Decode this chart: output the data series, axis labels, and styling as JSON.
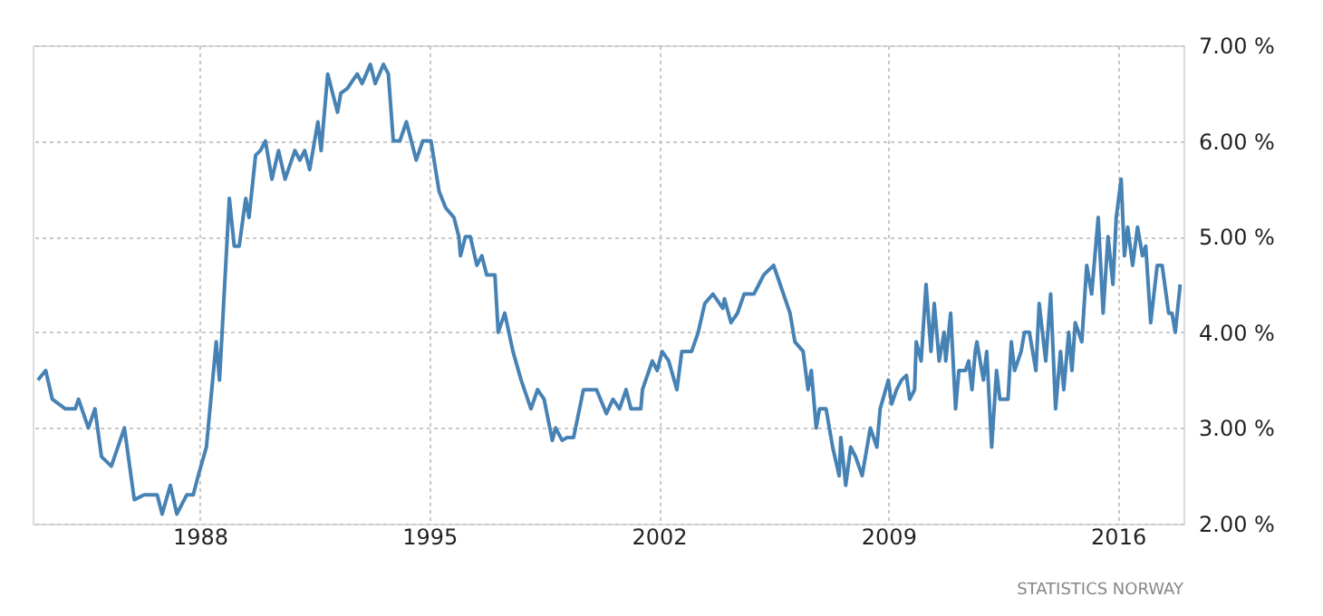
{
  "chart_data": {
    "type": "line",
    "x": [
      1983.06,
      1983.3,
      1983.5,
      1983.9,
      1984.2,
      1984.3,
      1984.6,
      1984.8,
      1985.0,
      1985.3,
      1985.7,
      1986.0,
      1986.3,
      1986.7,
      1986.85,
      1987.1,
      1987.3,
      1987.6,
      1987.8,
      1987.95,
      1988.2,
      1988.5,
      1988.6,
      1988.9,
      1989.05,
      1989.2,
      1989.4,
      1989.5,
      1989.7,
      1989.85,
      1990.0,
      1990.2,
      1990.4,
      1990.6,
      1990.9,
      1991.05,
      1991.2,
      1991.35,
      1991.6,
      1991.7,
      1991.9,
      1992.2,
      1992.3,
      1992.5,
      1992.8,
      1992.95,
      1993.2,
      1993.35,
      1993.6,
      1993.75,
      1993.9,
      1994.1,
      1994.3,
      1994.6,
      1994.8,
      1995.05,
      1995.3,
      1995.5,
      1995.75,
      1995.9,
      1995.95,
      1996.1,
      1996.25,
      1996.45,
      1996.6,
      1996.75,
      1997.0,
      1997.1,
      1997.3,
      1997.55,
      1997.8,
      1998.1,
      1998.3,
      1998.5,
      1998.75,
      1998.85,
      1999.05,
      1999.2,
      1999.4,
      1999.7,
      2000.1,
      2000.4,
      2000.6,
      2000.8,
      2001.0,
      2001.15,
      2001.45,
      2001.5,
      2001.8,
      2001.95,
      2002.1,
      2002.3,
      2002.55,
      2002.7,
      2003.0,
      2003.2,
      2003.4,
      2003.65,
      2003.95,
      2004.0,
      2004.2,
      2004.4,
      2004.6,
      2004.9,
      2005.05,
      2005.2,
      2005.5,
      2005.7,
      2006.0,
      2006.15,
      2006.4,
      2006.55,
      2006.65,
      2006.8,
      2006.9,
      2007.1,
      2007.3,
      2007.5,
      2007.55,
      2007.7,
      2007.85,
      2008.0,
      2008.2,
      2008.45,
      2008.65,
      2008.75,
      2009.0,
      2009.1,
      2009.25,
      2009.4,
      2009.55,
      2009.65,
      2009.8,
      2009.85,
      2010.0,
      2010.15,
      2010.3,
      2010.4,
      2010.55,
      2010.7,
      2010.75,
      2010.9,
      2011.05,
      2011.15,
      2011.35,
      2011.45,
      2011.55,
      2011.65,
      2011.7,
      2011.9,
      2012.0,
      2012.15,
      2012.3,
      2012.4,
      2012.65,
      2012.75,
      2012.85,
      2013.05,
      2013.15,
      2013.3,
      2013.5,
      2013.6,
      2013.8,
      2013.95,
      2014.1,
      2014.25,
      2014.35,
      2014.5,
      2014.6,
      2014.7,
      2014.75,
      2014.9,
      2015.05,
      2015.2,
      2015.4,
      2015.55,
      2015.7,
      2015.85,
      2015.95,
      2016.1,
      2016.2,
      2016.3,
      2016.45,
      2016.6,
      2016.75,
      2016.85,
      2017.0,
      2017.2,
      2017.35,
      2017.55,
      2017.65,
      2017.75,
      2017.9
    ],
    "series": [
      {
        "color": "#4682b4",
        "values": [
          3.5,
          3.6,
          3.3,
          3.2,
          3.2,
          3.3,
          3.0,
          3.2,
          2.7,
          2.6,
          3.0,
          2.25,
          2.3,
          2.3,
          2.1,
          2.4,
          2.1,
          2.3,
          2.3,
          2.5,
          2.8,
          3.9,
          3.5,
          5.4,
          4.9,
          4.9,
          5.4,
          5.2,
          5.85,
          5.9,
          6.0,
          5.6,
          5.9,
          5.6,
          5.9,
          5.8,
          5.9,
          5.7,
          6.2,
          5.9,
          6.7,
          6.3,
          6.5,
          6.55,
          6.7,
          6.6,
          6.8,
          6.6,
          6.8,
          6.7,
          6.0,
          6.0,
          6.2,
          5.8,
          6.0,
          6.0,
          5.47,
          5.3,
          5.2,
          5.0,
          4.8,
          5.0,
          5.0,
          4.7,
          4.8,
          4.6,
          4.6,
          4.0,
          4.2,
          3.8,
          3.5,
          3.2,
          3.4,
          3.3,
          2.87,
          3.0,
          2.87,
          2.9,
          2.9,
          3.4,
          3.4,
          3.15,
          3.3,
          3.2,
          3.4,
          3.2,
          3.2,
          3.4,
          3.7,
          3.6,
          3.8,
          3.7,
          3.4,
          3.8,
          3.8,
          4.0,
          4.3,
          4.4,
          4.25,
          4.35,
          4.1,
          4.2,
          4.4,
          4.4,
          4.5,
          4.6,
          4.7,
          4.5,
          4.2,
          3.9,
          3.8,
          3.4,
          3.6,
          3.0,
          3.2,
          3.2,
          2.8,
          2.5,
          2.9,
          2.4,
          2.8,
          2.7,
          2.5,
          3.0,
          2.8,
          3.2,
          3.5,
          3.25,
          3.4,
          3.5,
          3.55,
          3.3,
          3.4,
          3.9,
          3.7,
          4.5,
          3.8,
          4.3,
          3.7,
          4.0,
          3.7,
          4.2,
          3.2,
          3.6,
          3.6,
          3.7,
          3.4,
          3.8,
          3.9,
          3.5,
          3.8,
          2.8,
          3.6,
          3.3,
          3.3,
          3.9,
          3.6,
          3.8,
          4.0,
          4.0,
          3.6,
          4.3,
          3.7,
          4.4,
          3.2,
          3.8,
          3.4,
          4.0,
          3.6,
          4.1,
          4.05,
          3.9,
          4.7,
          4.4,
          5.2,
          4.2,
          5.0,
          4.5,
          5.2,
          5.6,
          4.8,
          5.1,
          4.7,
          5.1,
          4.8,
          4.9,
          4.1,
          4.7,
          4.7,
          4.2,
          4.2,
          4.0,
          4.5
        ]
      }
    ],
    "xlim": [
      1982.9,
      2018.0
    ],
    "xticks": [
      1988,
      1995,
      2002,
      2009,
      2016
    ],
    "ylim": [
      2,
      7
    ],
    "yticks": [
      {
        "value": 2,
        "label": "2.00 %"
      },
      {
        "value": 3,
        "label": "3.00 %"
      },
      {
        "value": 4,
        "label": "4.00 %"
      },
      {
        "value": 5,
        "label": "5.00 %"
      },
      {
        "value": 6,
        "label": "6.00 %"
      },
      {
        "value": 7,
        "label": "7.00 %"
      }
    ],
    "grid": true,
    "line_style": "solid",
    "marker": "none",
    "annotations": [
      "STATISTICS NORWAY"
    ]
  }
}
